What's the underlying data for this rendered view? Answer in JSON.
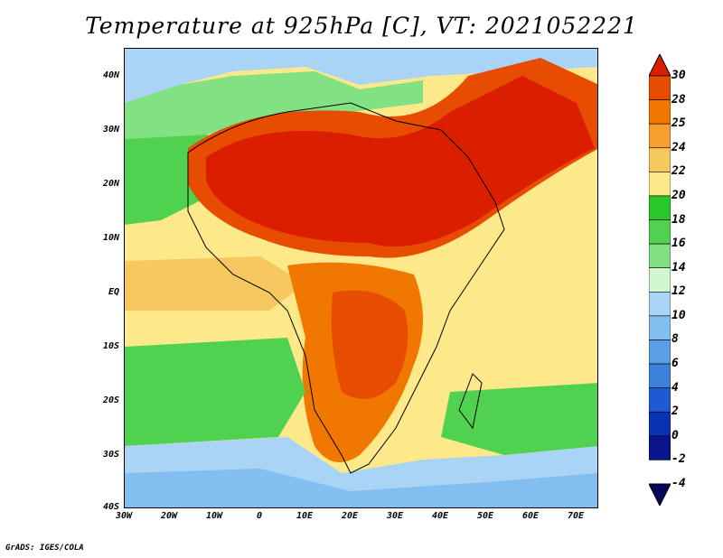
{
  "title": "Temperature at 925hPa [C], VT: 2021052221",
  "credit": "GrADS: IGES/COLA",
  "lat_ticks": [
    "40N",
    "30N",
    "20N",
    "10N",
    "EQ",
    "10S",
    "20S",
    "30S",
    "40S"
  ],
  "lon_ticks": [
    "30W",
    "20W",
    "10W",
    "0",
    "10E",
    "20E",
    "30E",
    "40E",
    "50E",
    "60E",
    "70E"
  ],
  "colorbar": {
    "labels": [
      "30",
      "28",
      "25",
      "24",
      "22",
      "20",
      "18",
      "16",
      "14",
      "12",
      "10",
      "8",
      "6",
      "4",
      "2",
      "0",
      "-2",
      "-4"
    ],
    "colors": [
      "#dc1e00",
      "#e84c00",
      "#f07800",
      "#f5a030",
      "#f8c860",
      "#fde88a",
      "#28c828",
      "#50d250",
      "#82e182",
      "#d2f5d2",
      "#aad4f5",
      "#82bef0",
      "#5a9ee6",
      "#3c82dc",
      "#1e5ad2",
      "#0a32b4",
      "#0a148c",
      "#06065a"
    ]
  },
  "colors": {
    "ocean_south": "#82bef0",
    "warm": "#fde88a",
    "hot": "#dc1e00",
    "cool_green": "#50d250"
  }
}
